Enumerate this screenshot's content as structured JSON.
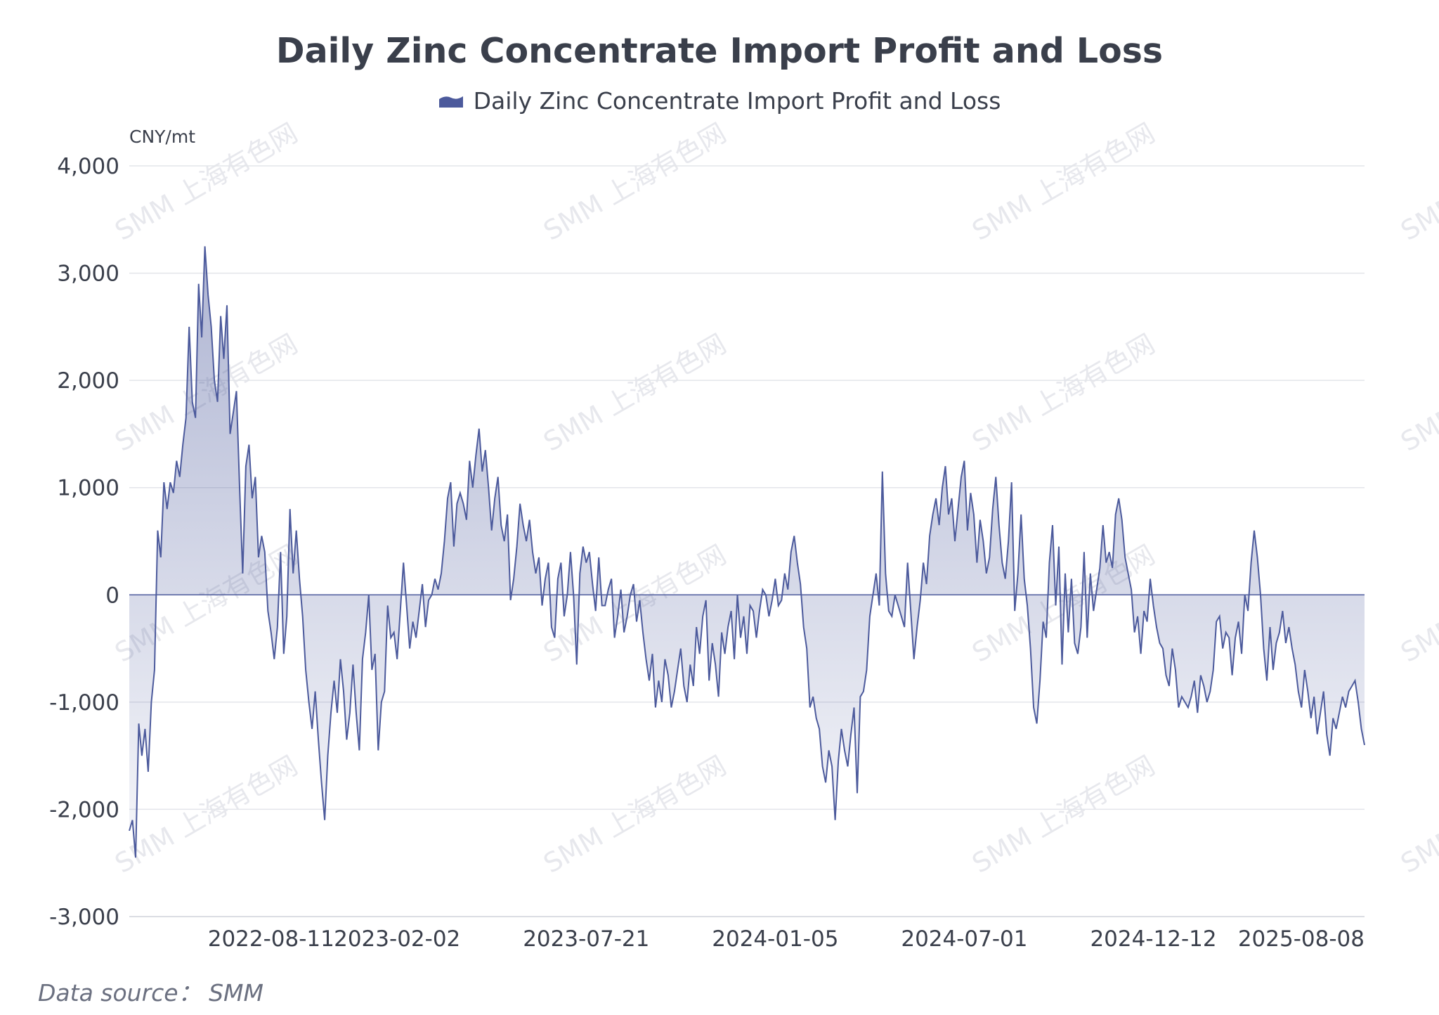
{
  "chart_data": {
    "type": "area",
    "title": "Daily Zinc Concentrate Import Profit and Loss",
    "ylabel": "CNY/mt",
    "xlabel": "",
    "ylim": [
      -3000,
      4000
    ],
    "yticks": [
      "4,000",
      "3,000",
      "2,000",
      "1,000",
      "0",
      "-1,000",
      "-2,000",
      "-3,000"
    ],
    "ytick_values": [
      4000,
      3000,
      2000,
      1000,
      0,
      -1000,
      -2000,
      -3000
    ],
    "xticks": [
      "2022-08-11",
      "2023-02-02",
      "2023-07-21",
      "2024-01-05",
      "2024-07-01",
      "2024-12-12",
      "2025-08-08"
    ],
    "xtick_index": [
      45,
      85,
      145,
      205,
      265,
      325,
      389
    ],
    "grid": true,
    "legend_position": "top-center",
    "series": [
      {
        "name": "Daily Zinc Concentrate Import Profit and Loss",
        "color": "#4c5a9c",
        "values": [
          -2200,
          -2100,
          -2450,
          -1200,
          -1500,
          -1250,
          -1650,
          -1000,
          -700,
          600,
          350,
          1050,
          800,
          1050,
          950,
          1250,
          1100,
          1400,
          1650,
          2500,
          1800,
          1650,
          2900,
          2400,
          3250,
          2800,
          2500,
          2000,
          1800,
          2600,
          2200,
          2700,
          1500,
          1700,
          1900,
          1000,
          200,
          1200,
          1400,
          900,
          1100,
          350,
          550,
          400,
          -150,
          -350,
          -600,
          -300,
          400,
          -550,
          -200,
          800,
          200,
          600,
          150,
          -200,
          -700,
          -1000,
          -1250,
          -900,
          -1350,
          -1750,
          -2100,
          -1500,
          -1100,
          -800,
          -1100,
          -600,
          -900,
          -1350,
          -1100,
          -650,
          -1100,
          -1450,
          -600,
          -350,
          0,
          -700,
          -550,
          -1450,
          -1000,
          -900,
          -100,
          -400,
          -350,
          -600,
          -150,
          300,
          -100,
          -500,
          -250,
          -400,
          -150,
          100,
          -300,
          -50,
          0,
          150,
          50,
          200,
          500,
          900,
          1050,
          450,
          850,
          950,
          850,
          700,
          1250,
          1000,
          1300,
          1550,
          1150,
          1350,
          1000,
          600,
          900,
          1100,
          650,
          500,
          750,
          -50,
          150,
          450,
          850,
          650,
          500,
          700,
          400,
          200,
          350,
          -100,
          150,
          300,
          -300,
          -400,
          150,
          300,
          -200,
          0,
          400,
          0,
          -650,
          200,
          450,
          300,
          400,
          100,
          -150,
          350,
          -100,
          -100,
          50,
          150,
          -400,
          -200,
          50,
          -350,
          -200,
          0,
          100,
          -250,
          -50,
          -350,
          -600,
          -800,
          -550,
          -1050,
          -800,
          -1000,
          -600,
          -750,
          -1050,
          -900,
          -700,
          -500,
          -850,
          -1000,
          -650,
          -850,
          -300,
          -550,
          -200,
          -50,
          -800,
          -450,
          -650,
          -950,
          -350,
          -550,
          -300,
          -150,
          -600,
          0,
          -400,
          -200,
          -550,
          -100,
          -150,
          -400,
          -150,
          50,
          0,
          -200,
          -50,
          150,
          -100,
          -50,
          200,
          50,
          400,
          550,
          300,
          100,
          -300,
          -500,
          -1050,
          -950,
          -1150,
          -1250,
          -1600,
          -1750,
          -1450,
          -1600,
          -2100,
          -1550,
          -1250,
          -1450,
          -1600,
          -1300,
          -1050,
          -1850,
          -950,
          -900,
          -700,
          -200,
          0,
          200,
          -100,
          1150,
          200,
          -150,
          -200,
          0,
          -100,
          -200,
          -300,
          300,
          -150,
          -600,
          -300,
          -50,
          300,
          100,
          550,
          750,
          900,
          650,
          1000,
          1200,
          750,
          900,
          500,
          800,
          1100,
          1250,
          600,
          950,
          750,
          300,
          700,
          500,
          200,
          350,
          800,
          1100,
          650,
          300,
          150,
          500,
          1050,
          -150,
          200,
          750,
          150,
          -100,
          -500,
          -1050,
          -1200,
          -800,
          -250,
          -400,
          300,
          650,
          -100,
          450,
          -650,
          200,
          -350,
          150,
          -450,
          -550,
          -300,
          400,
          -400,
          200,
          -150,
          50,
          250,
          650,
          300,
          400,
          250,
          750,
          900,
          700,
          350,
          200,
          50,
          -350,
          -200,
          -550,
          -150,
          -250,
          150,
          -100,
          -300,
          -450,
          -500,
          -750,
          -850,
          -500,
          -700,
          -1050,
          -950,
          -1000,
          -1050,
          -950,
          -800,
          -1100,
          -750,
          -850,
          -1000,
          -900,
          -700,
          -250,
          -200,
          -500,
          -350,
          -400,
          -750,
          -400,
          -250,
          -550,
          0,
          -150,
          300,
          600,
          350,
          0,
          -500,
          -800,
          -300,
          -700,
          -450,
          -350,
          -150,
          -450,
          -300,
          -500,
          -650,
          -900,
          -1050,
          -700,
          -900,
          -1150,
          -950,
          -1300,
          -1100,
          -900,
          -1300,
          -1500,
          -1150,
          -1250,
          -1100,
          -950,
          -1050,
          -900,
          -850,
          -800,
          -1000,
          -1250,
          -1400
        ]
      }
    ]
  },
  "source_text": "Data source： SMM",
  "watermark_text": "SMM 上海有色网"
}
